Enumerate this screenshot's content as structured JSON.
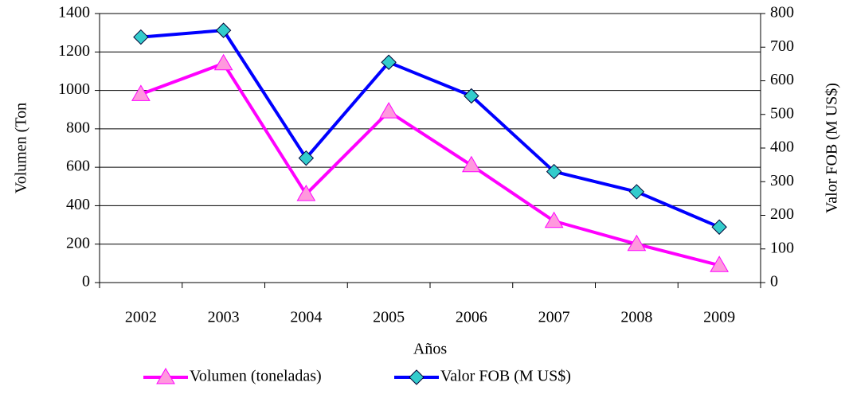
{
  "chart_data": {
    "type": "line",
    "x_label": "Años",
    "y_label": "Volumen (Ton",
    "y2_label": "Valor FOB (M US$)",
    "categories": [
      "2002",
      "2003",
      "2004",
      "2005",
      "2006",
      "2007",
      "2008",
      "2009"
    ],
    "series": [
      {
        "name": "Volumen (toneladas)",
        "color": "#ff00ff",
        "marker": "triangle",
        "marker_color": "#ff99dd",
        "values": [
          980,
          1140,
          460,
          890,
          610,
          320,
          200,
          90
        ]
      },
      {
        "name": "Valor FOB (M US$)",
        "color": "#0000ff",
        "marker": "diamond",
        "marker_color": "#33cccc",
        "axis": "y2",
        "values": [
          730,
          750,
          370,
          655,
          555,
          330,
          270,
          165
        ]
      }
    ],
    "ylim": [
      0,
      1400
    ],
    "yticks": [
      0,
      200,
      400,
      600,
      800,
      1000,
      1200,
      1400
    ],
    "y2lim": [
      0,
      800
    ],
    "y2ticks": [
      0,
      100,
      200,
      300,
      400,
      500,
      600,
      700,
      800
    ],
    "grid": true,
    "legend": "bottom"
  }
}
